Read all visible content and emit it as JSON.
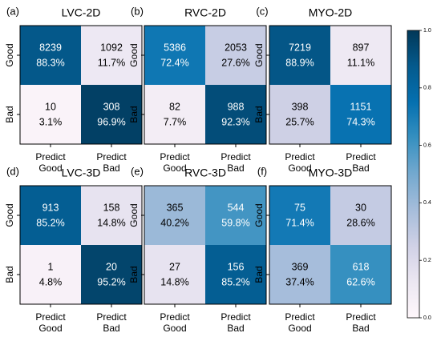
{
  "chart_data": [
    {
      "type": "heatmap",
      "panel_label": "(a)",
      "title": "LVC-2D",
      "row_labels": [
        "Good",
        "Bad"
      ],
      "col_labels": [
        [
          "Predict",
          "Good"
        ],
        [
          "Predict",
          "Bad"
        ]
      ],
      "cells": [
        [
          {
            "count": "8239",
            "percent": "88.3%",
            "value": 0.883
          },
          {
            "count": "1092",
            "percent": "11.7%",
            "value": 0.117
          }
        ],
        [
          {
            "count": "10",
            "percent": "3.1%",
            "value": 0.031
          },
          {
            "count": "308",
            "percent": "96.9%",
            "value": 0.969
          }
        ]
      ]
    },
    {
      "type": "heatmap",
      "panel_label": "(b)",
      "title": "RVC-2D",
      "row_labels": [
        "Good",
        "Bad"
      ],
      "col_labels": [
        [
          "Predict",
          "Good"
        ],
        [
          "Predict",
          "Bad"
        ]
      ],
      "cells": [
        [
          {
            "count": "5386",
            "percent": "72.4%",
            "value": 0.724
          },
          {
            "count": "2053",
            "percent": "27.6%",
            "value": 0.276
          }
        ],
        [
          {
            "count": "82",
            "percent": "7.7%",
            "value": 0.077
          },
          {
            "count": "988",
            "percent": "92.3%",
            "value": 0.923
          }
        ]
      ]
    },
    {
      "type": "heatmap",
      "panel_label": "(c)",
      "title": "MYO-2D",
      "row_labels": [
        "Good",
        "Bad"
      ],
      "col_labels": [
        [
          "Predict",
          "Good"
        ],
        [
          "Predict",
          "Bad"
        ]
      ],
      "cells": [
        [
          {
            "count": "7219",
            "percent": "88.9%",
            "value": 0.889
          },
          {
            "count": "897",
            "percent": "11.1%",
            "value": 0.111
          }
        ],
        [
          {
            "count": "398",
            "percent": "25.7%",
            "value": 0.257
          },
          {
            "count": "1151",
            "percent": "74.3%",
            "value": 0.743
          }
        ]
      ]
    },
    {
      "type": "heatmap",
      "panel_label": "(d)",
      "title": "LVC-3D",
      "row_labels": [
        "Good",
        "Bad"
      ],
      "col_labels": [
        [
          "Predict",
          "Good"
        ],
        [
          "Predict",
          "Bad"
        ]
      ],
      "cells": [
        [
          {
            "count": "913",
            "percent": "85.2%",
            "value": 0.852
          },
          {
            "count": "158",
            "percent": "14.8%",
            "value": 0.148
          }
        ],
        [
          {
            "count": "1",
            "percent": "4.8%",
            "value": 0.048
          },
          {
            "count": "20",
            "percent": "95.2%",
            "value": 0.952
          }
        ]
      ]
    },
    {
      "type": "heatmap",
      "panel_label": "(e)",
      "title": "RVC-3D",
      "row_labels": [
        "Good",
        "Bad"
      ],
      "col_labels": [
        [
          "Predict",
          "Good"
        ],
        [
          "Predict",
          "Bad"
        ]
      ],
      "cells": [
        [
          {
            "count": "365",
            "percent": "40.2%",
            "value": 0.402
          },
          {
            "count": "544",
            "percent": "59.8%",
            "value": 0.598
          }
        ],
        [
          {
            "count": "27",
            "percent": "14.8%",
            "value": 0.148
          },
          {
            "count": "156",
            "percent": "85.2%",
            "value": 0.852
          }
        ]
      ]
    },
    {
      "type": "heatmap",
      "panel_label": "(f)",
      "title": "MYO-3D",
      "row_labels": [
        "Good",
        "Bad"
      ],
      "col_labels": [
        [
          "Predict",
          "Good"
        ],
        [
          "Predict",
          "Bad"
        ]
      ],
      "cells": [
        [
          {
            "count": "75",
            "percent": "71.4%",
            "value": 0.714
          },
          {
            "count": "30",
            "percent": "28.6%",
            "value": 0.286
          }
        ],
        [
          {
            "count": "369",
            "percent": "37.4%",
            "value": 0.374
          },
          {
            "count": "618",
            "percent": "62.6%",
            "value": 0.626
          }
        ]
      ]
    }
  ],
  "colorbar": {
    "range": [
      0.0,
      1.0
    ],
    "ticks": [
      "0.0",
      "0.2",
      "0.4",
      "0.6",
      "0.8",
      "1.0"
    ],
    "colormap": "PuBu",
    "color_low": "#fff7fb",
    "color_high": "#023858"
  }
}
